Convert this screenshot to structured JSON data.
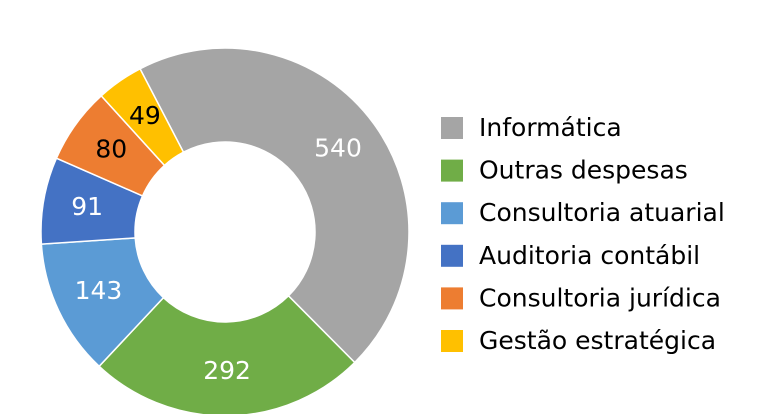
{
  "chart_data": {
    "type": "donut",
    "categories": [
      "Informática",
      "Outras despesas",
      "Consultoria atuarial",
      "Auditoria contábil",
      "Consultoria jurídica",
      "Gestão estratégica"
    ],
    "values": [
      540,
      292,
      143,
      91,
      80,
      49
    ],
    "colors": [
      "#a5a5a5",
      "#70ad47",
      "#5b9bd5",
      "#4472c4",
      "#ed7d31",
      "#ffc000"
    ],
    "label_colors": [
      "#ffffff",
      "#ffffff",
      "#ffffff",
      "#ffffff",
      "#000000",
      "#000000"
    ],
    "legend": "right"
  }
}
